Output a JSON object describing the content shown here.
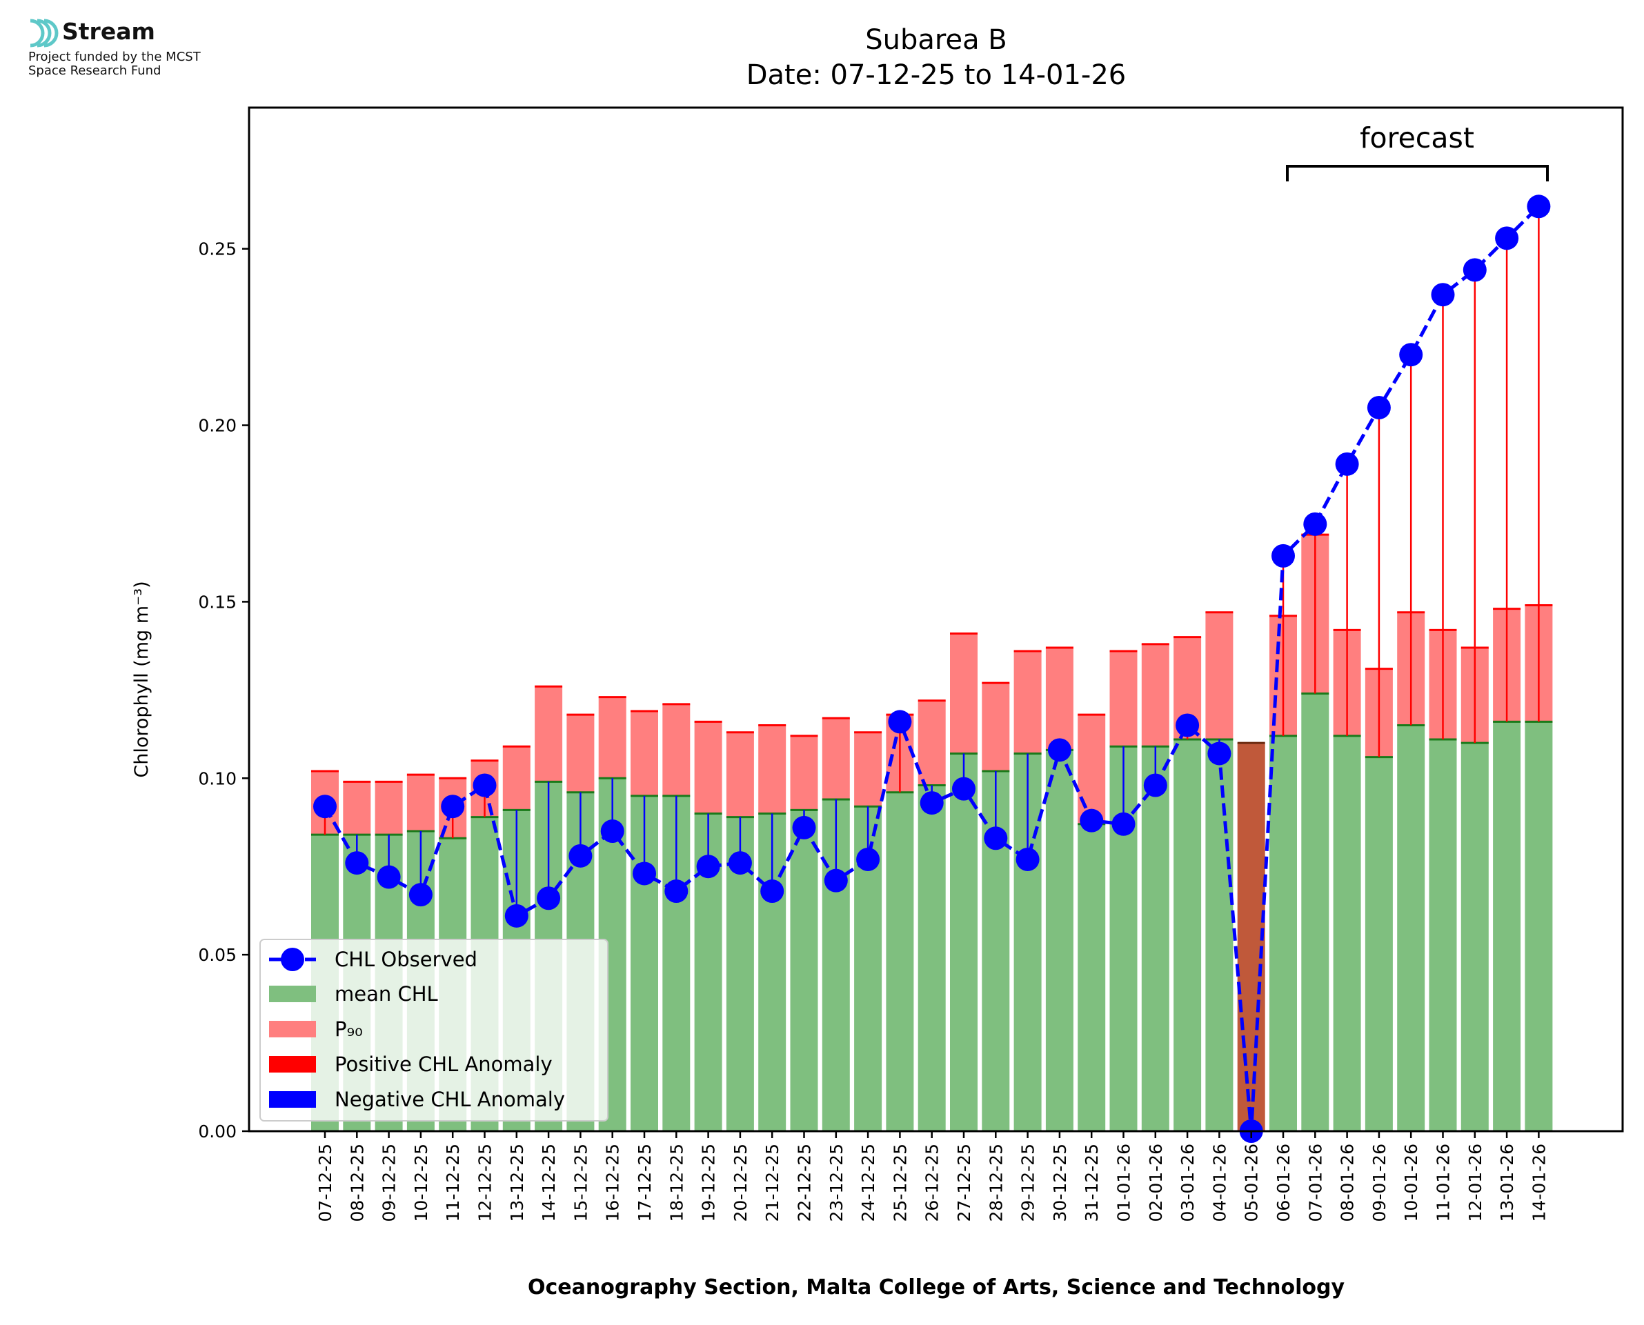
{
  "logo": {
    "brand": "Stream",
    "line1": "Project funded by the MCST",
    "line2": "Space Research Fund",
    "accent": "#5ec8c8"
  },
  "chart_data": {
    "type": "bar",
    "title": "Subarea B",
    "subtitle": "Date: 07-12-25 to 14-01-26",
    "ylabel": "Chlorophyll (mg m⁻³)",
    "xlabel": "Oceanography Section, Malta College of Arts, Science and Technology",
    "ylim": [
      0,
      0.29
    ],
    "yticks": [
      0.0,
      0.05,
      0.1,
      0.15,
      0.2,
      0.25
    ],
    "ytick_labels": [
      "0.00",
      "0.05",
      "0.10",
      "0.15",
      "0.20",
      "0.25"
    ],
    "categories": [
      "07-12-25",
      "08-12-25",
      "09-12-25",
      "10-12-25",
      "11-12-25",
      "12-12-25",
      "13-12-25",
      "14-12-25",
      "15-12-25",
      "16-12-25",
      "17-12-25",
      "18-12-25",
      "19-12-25",
      "20-12-25",
      "21-12-25",
      "22-12-25",
      "23-12-25",
      "24-12-25",
      "25-12-25",
      "26-12-25",
      "27-12-25",
      "28-12-25",
      "29-12-25",
      "30-12-25",
      "31-12-25",
      "01-01-26",
      "02-01-26",
      "03-01-26",
      "04-01-26",
      "05-01-26",
      "06-01-26",
      "07-01-26",
      "08-01-26",
      "09-01-26",
      "10-01-26",
      "11-01-26",
      "12-01-26",
      "13-01-26",
      "14-01-26"
    ],
    "series": [
      {
        "name": "CHL Observed",
        "kind": "line",
        "color": "#0000ff",
        "values": [
          0.092,
          0.076,
          0.072,
          0.067,
          0.092,
          0.098,
          0.061,
          0.066,
          0.078,
          0.085,
          0.073,
          0.068,
          0.075,
          0.076,
          0.068,
          0.086,
          0.071,
          0.077,
          0.116,
          0.093,
          0.097,
          0.083,
          0.077,
          0.108,
          0.088,
          0.087,
          0.098,
          0.115,
          0.107,
          0.0,
          0.163,
          0.172,
          0.189,
          0.205,
          0.22,
          0.237,
          0.244,
          0.253,
          0.262
        ]
      },
      {
        "name": "mean CHL",
        "kind": "bar",
        "color": "#7fbf7f",
        "values": [
          0.084,
          0.084,
          0.084,
          0.085,
          0.083,
          0.089,
          0.091,
          0.099,
          0.096,
          0.1,
          0.095,
          0.095,
          0.09,
          0.089,
          0.09,
          0.091,
          0.094,
          0.092,
          0.096,
          0.098,
          0.107,
          0.102,
          0.107,
          0.108,
          0.087,
          0.109,
          0.109,
          0.111,
          0.111,
          0.11,
          0.112,
          0.124,
          0.112,
          0.106,
          0.115,
          0.111,
          0.11,
          0.116,
          0.116
        ]
      },
      {
        "name": "P₉₀",
        "kind": "bar",
        "color": "#ff7f7f",
        "values": [
          0.102,
          0.099,
          0.099,
          0.101,
          0.1,
          0.105,
          0.109,
          0.126,
          0.118,
          0.123,
          0.119,
          0.121,
          0.116,
          0.113,
          0.115,
          0.112,
          0.117,
          0.113,
          0.118,
          0.122,
          0.141,
          0.127,
          0.136,
          0.137,
          0.118,
          0.136,
          0.138,
          0.14,
          0.147,
          0.11,
          0.146,
          0.169,
          0.142,
          0.131,
          0.147,
          0.142,
          0.137,
          0.148,
          0.149
        ]
      },
      {
        "name": "Positive CHL Anomaly",
        "kind": "legend-only",
        "color": "#ff0000"
      },
      {
        "name": "Negative CHL Anomaly",
        "kind": "legend-only",
        "color": "#0000ff"
      }
    ],
    "missing_data_category": "05-01-26",
    "missing_bar_color": "#c0593a",
    "annotation": {
      "text": "forecast",
      "from": "06-01-26",
      "to": "14-01-26"
    },
    "legend_position": "lower-left",
    "grid": false
  }
}
